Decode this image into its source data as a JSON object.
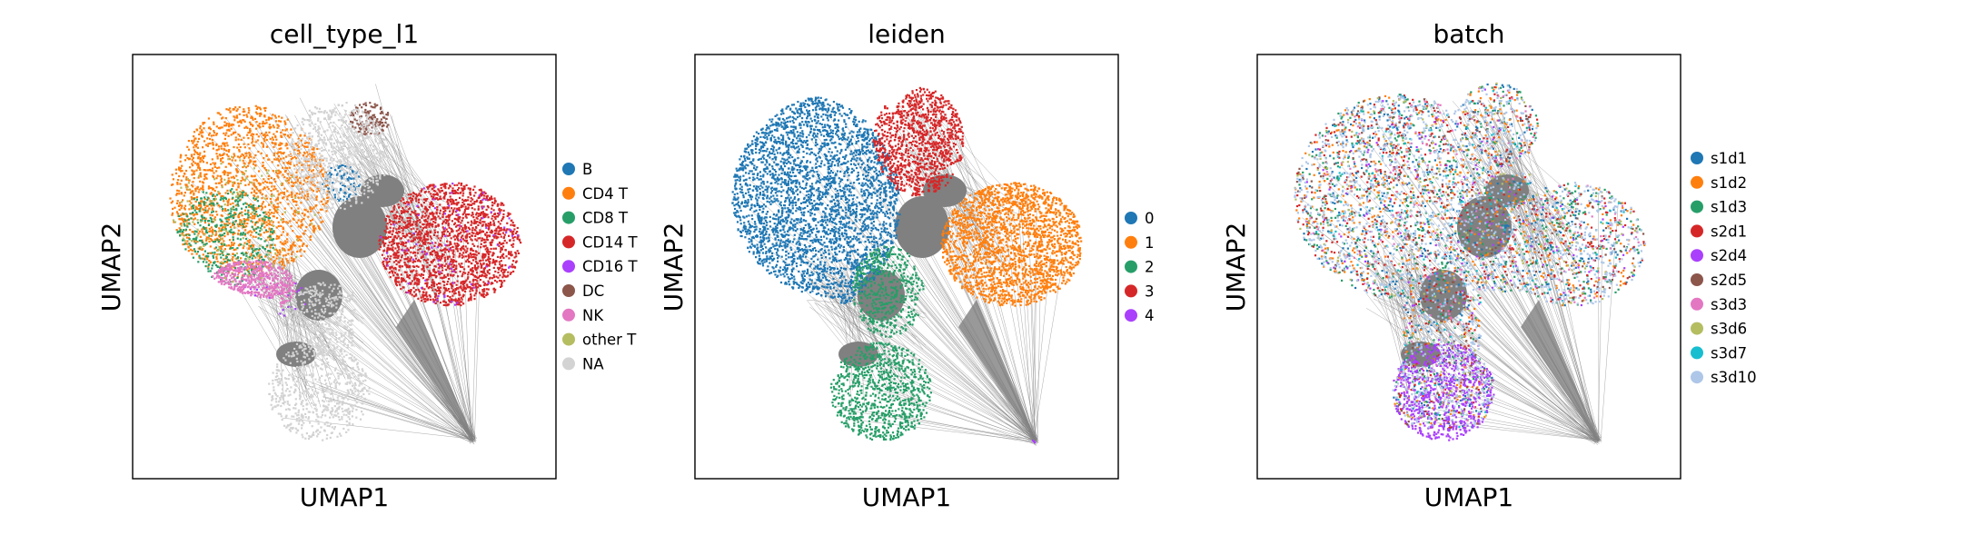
{
  "chart_data": [
    {
      "type": "scatter",
      "title": "cell_type_l1",
      "xlabel": "UMAP1",
      "ylabel": "UMAP2",
      "grid": false,
      "legend_placement": "right",
      "series": [
        {
          "name": "B",
          "color": "#1f77b4"
        },
        {
          "name": "CD4 T",
          "color": "#ff7f0e"
        },
        {
          "name": "CD8 T",
          "color": "#279e68"
        },
        {
          "name": "CD14 T",
          "color": "#d62728"
        },
        {
          "name": "CD16 T",
          "color": "#aa40fc"
        },
        {
          "name": "DC",
          "color": "#8c564b"
        },
        {
          "name": "NK",
          "color": "#e377c2"
        },
        {
          "name": "other T",
          "color": "#b5bd61"
        },
        {
          "name": "NA",
          "color": "#d3d3d3"
        }
      ]
    },
    {
      "type": "scatter",
      "title": "leiden",
      "xlabel": "UMAP1",
      "ylabel": "UMAP2",
      "grid": false,
      "legend_placement": "right",
      "series": [
        {
          "name": "0",
          "color": "#1f77b4"
        },
        {
          "name": "1",
          "color": "#ff7f0e"
        },
        {
          "name": "2",
          "color": "#279e68"
        },
        {
          "name": "3",
          "color": "#d62728"
        },
        {
          "name": "4",
          "color": "#aa40fc"
        }
      ]
    },
    {
      "type": "scatter",
      "title": "batch",
      "xlabel": "UMAP1",
      "ylabel": "UMAP2",
      "grid": false,
      "legend_placement": "right",
      "series": [
        {
          "name": "s1d1",
          "color": "#1f77b4"
        },
        {
          "name": "s1d2",
          "color": "#ff7f0e"
        },
        {
          "name": "s1d3",
          "color": "#279e68"
        },
        {
          "name": "s2d1",
          "color": "#d62728"
        },
        {
          "name": "s2d4",
          "color": "#aa40fc"
        },
        {
          "name": "s2d5",
          "color": "#8c564b"
        },
        {
          "name": "s3d3",
          "color": "#e377c2"
        },
        {
          "name": "s3d6",
          "color": "#b5bd61"
        },
        {
          "name": "s3d7",
          "color": "#17becf"
        },
        {
          "name": "s3d10",
          "color": "#aec7e8"
        }
      ]
    }
  ],
  "colors": {
    "edges": "#808080",
    "frame": "#000000"
  }
}
